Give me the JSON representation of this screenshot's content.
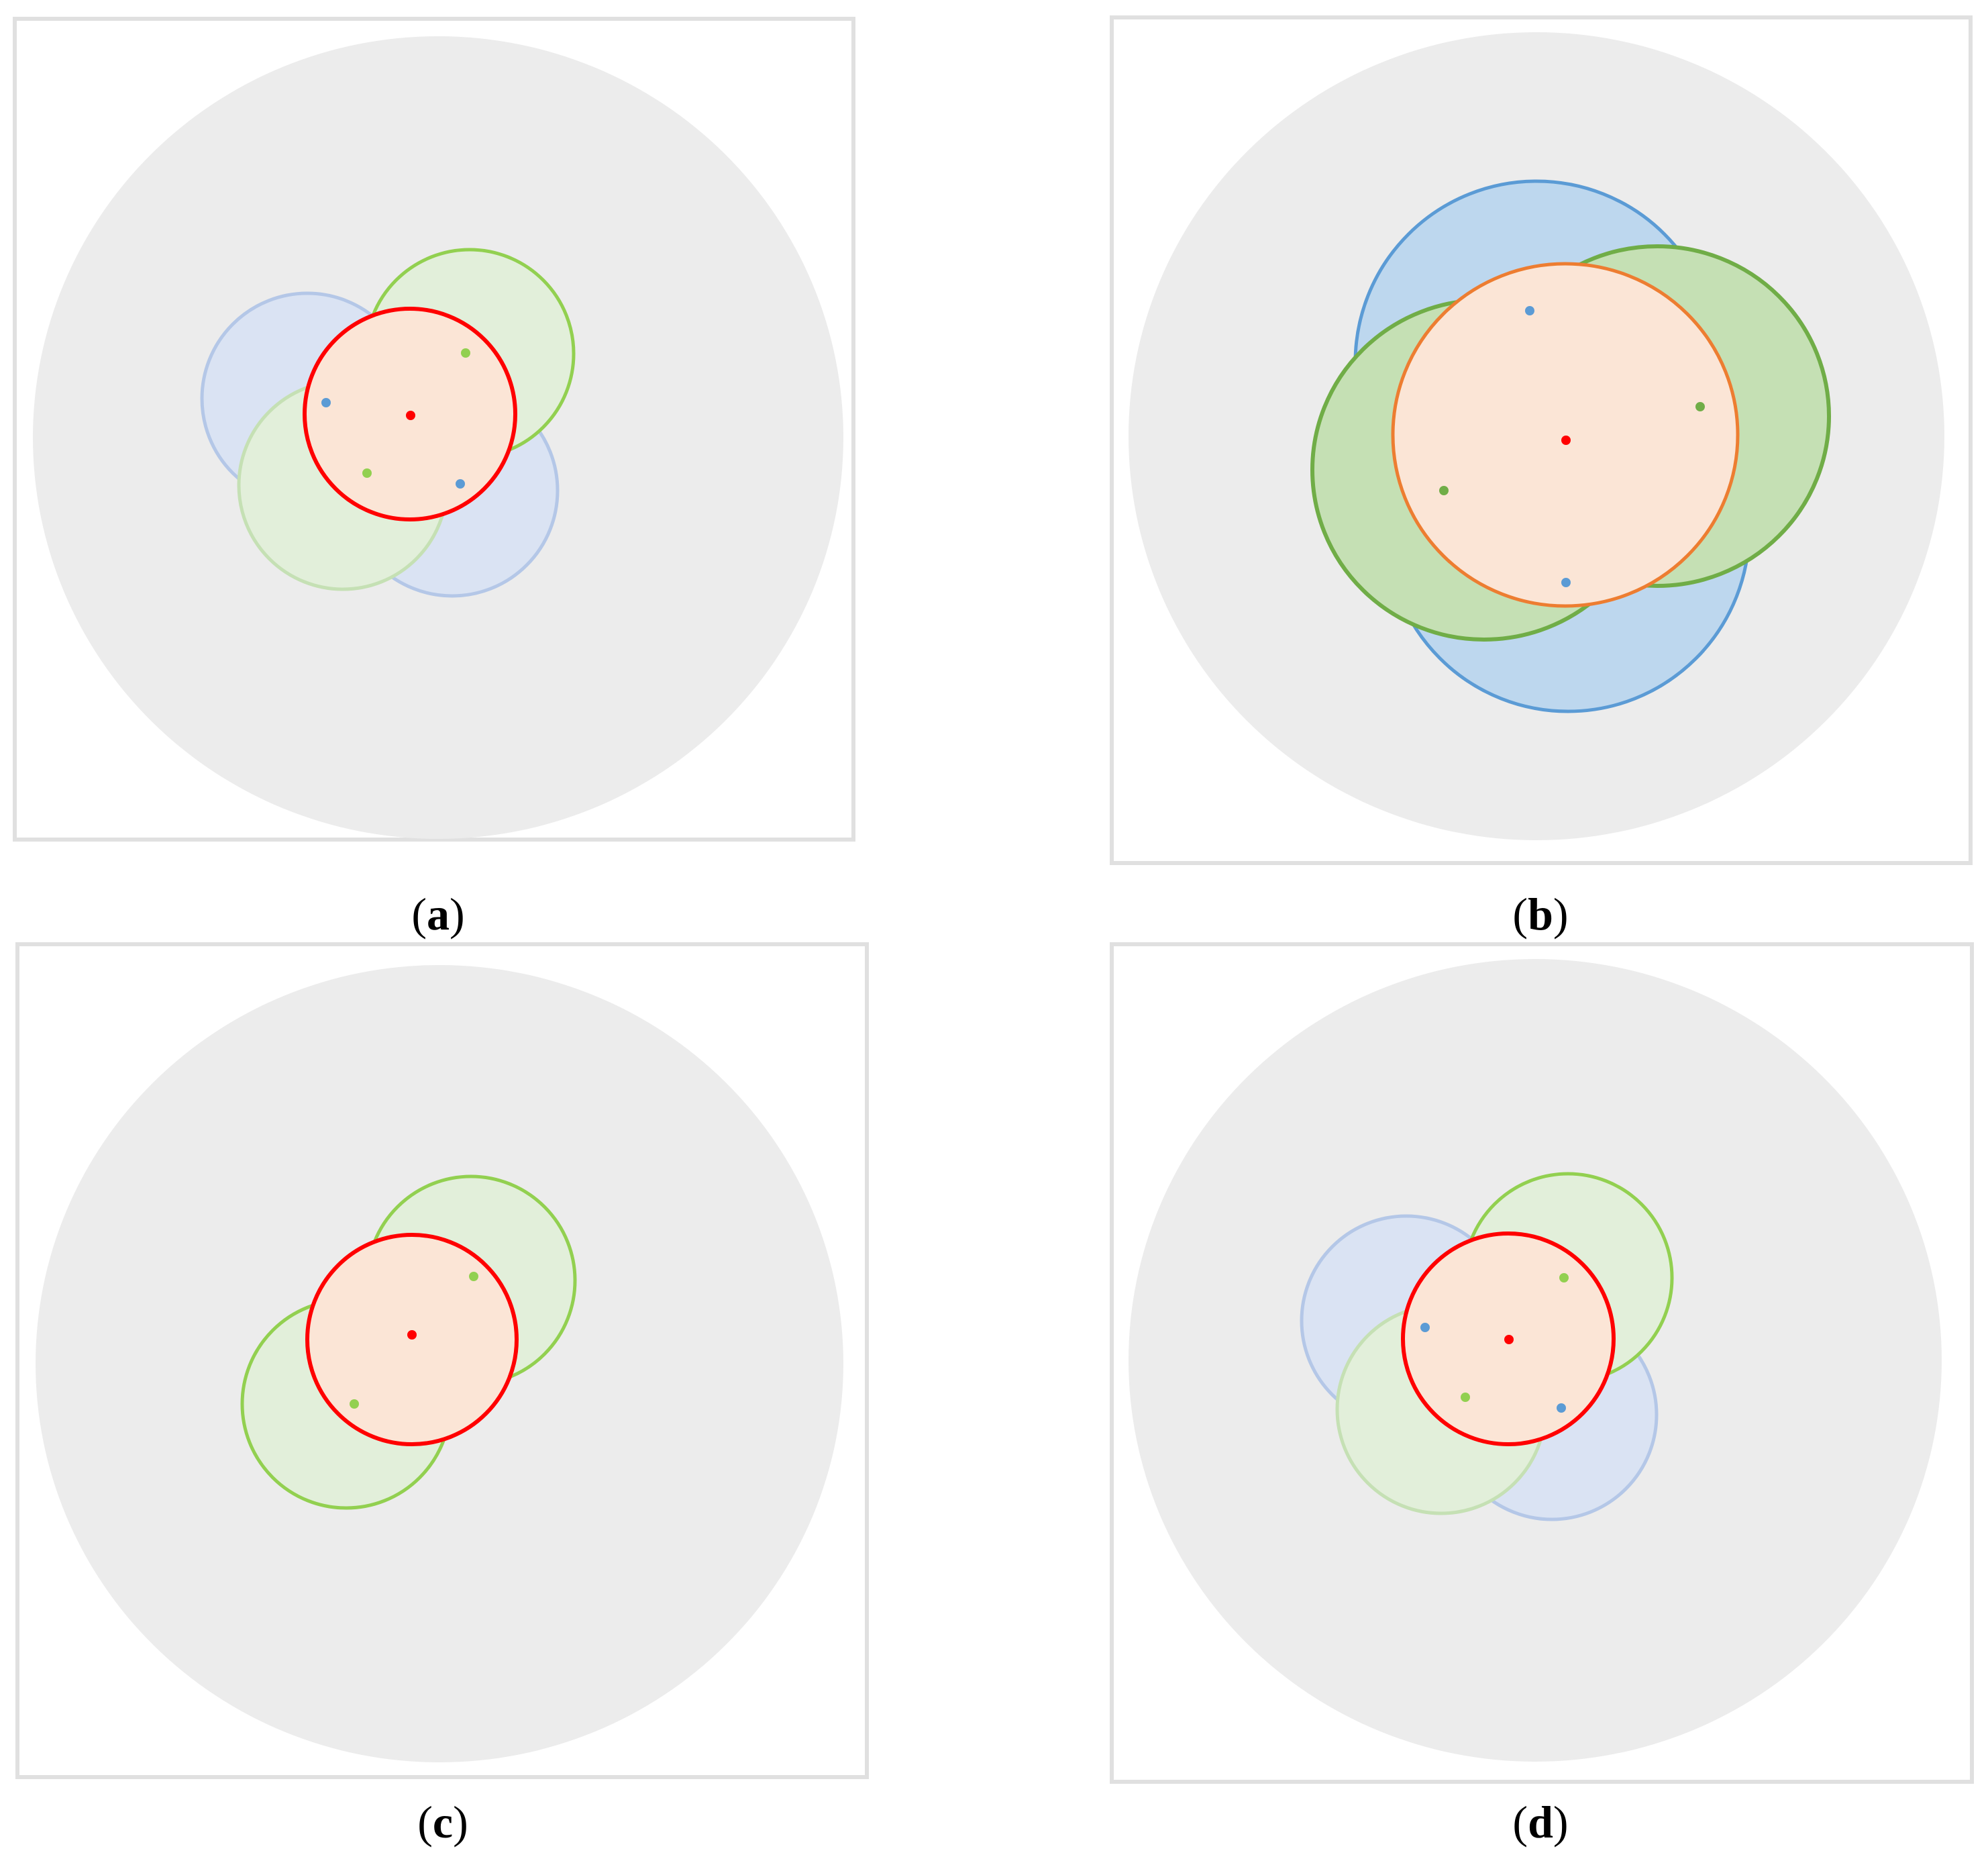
{
  "figure": {
    "panels": [
      {
        "label": "a",
        "outline": {
          "stroke": "#e0e0e0",
          "fill": "#ffffff"
        },
        "disk": {
          "fill": "#ececec"
        }
      },
      {
        "label": "b",
        "outline": {
          "stroke": "#e0e0e0",
          "fill": "#ffffff"
        },
        "disk": {
          "fill": "#ececec"
        }
      },
      {
        "label": "c",
        "outline": {
          "stroke": "#e0e0e0",
          "fill": "#ffffff"
        },
        "disk": {
          "fill": "#ececec"
        }
      },
      {
        "label": "d",
        "outline": {
          "stroke": "#e0e0e0",
          "fill": "#ffffff"
        },
        "disk": {
          "fill": "#ececec"
        }
      }
    ],
    "palette": {
      "light_blue_fill": "#dae3f3",
      "light_blue_stroke": "#b4c7e7",
      "light_green_fill": "#e2efda",
      "light_green_stroke": "#92d050",
      "light_green_stroke_soft": "#c5e0b4",
      "strong_blue_fill": "#bdd7ee",
      "strong_blue_stroke": "#5b9bd5",
      "strong_green_fill": "#c5e0b4",
      "strong_green_stroke": "#70ad47",
      "salmon_fill": "#fbe5d6",
      "red_stroke": "#ff0000",
      "orange_stroke": "#ed7d31",
      "dot_blue": "#5b9bd5",
      "dot_light_green": "#92d050",
      "dot_green": "#70ad47",
      "dot_red": "#ff0000"
    }
  }
}
